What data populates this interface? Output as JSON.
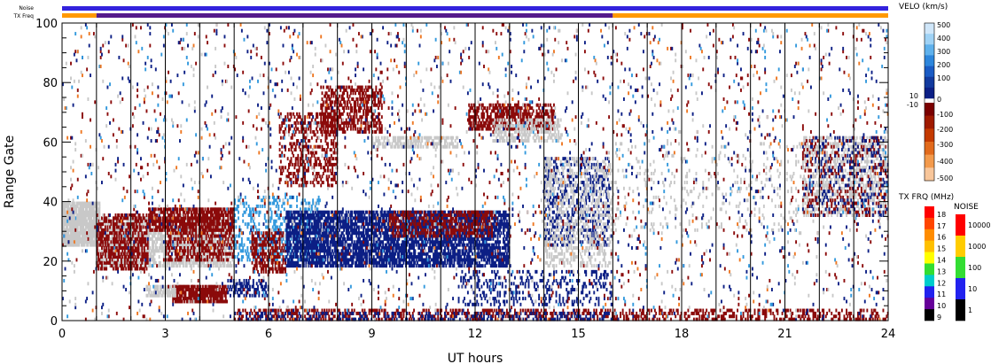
{
  "chart_data": {
    "type": "heatmap",
    "xlabel": "UT hours",
    "ylabel": "Range Gate",
    "xlim": [
      0,
      24
    ],
    "ylim": [
      0,
      100
    ],
    "x_ticks": [
      "0",
      "3",
      "6",
      "9",
      "12",
      "15",
      "18",
      "21",
      "24"
    ],
    "y_ticks": [
      "0",
      "20",
      "40",
      "60",
      "80",
      "100"
    ],
    "grid": "vertical lines every hour",
    "top_bars": {
      "noise_label": "Noise",
      "txfreq_label": "TX Freq",
      "noise_color": "#3322dd",
      "txfreq_segments": [
        {
          "start": 0,
          "end": 1,
          "color": "#ff9900"
        },
        {
          "start": 1,
          "end": 16,
          "color": "#551a8b"
        },
        {
          "start": 16,
          "end": 24,
          "color": "#ff9900"
        }
      ]
    },
    "velocity_scale": {
      "title": "VELO (km/s)",
      "labels": [
        "500",
        "400",
        "300",
        "200",
        "100",
        "10",
        "0",
        "-10",
        "-100",
        "-200",
        "-300",
        "-400",
        "-500"
      ],
      "positive_colors": [
        "#cfe6f9",
        "#9fd2f5",
        "#5fb1ec",
        "#2d86dc",
        "#1a5bc4",
        "#123a9e",
        "#0c1f85"
      ],
      "negative_colors": [
        "#7a0000",
        "#a01a00",
        "#c43a00",
        "#e26a1c",
        "#f39a4c",
        "#f8c69a"
      ]
    },
    "txfreq_scale": {
      "title": "TX FRQ (MHz)",
      "labels": [
        "18",
        "17",
        "16",
        "15",
        "14",
        "13",
        "12",
        "11",
        "10",
        "9"
      ],
      "colors": [
        "#ff0000",
        "#ff4500",
        "#ff8c00",
        "#ffc000",
        "#ffff00",
        "#33dd33",
        "#00cccc",
        "#2222ee",
        "#660099",
        "#000000"
      ]
    },
    "noise_scale": {
      "title": "NOISE",
      "labels": [
        "10000",
        "1000",
        "100",
        "10",
        "1"
      ],
      "colors": [
        "#ff0000",
        "#ffcc00",
        "#33dd33",
        "#2222ee",
        "#000000"
      ]
    },
    "colors": {
      "ground_scatter": "#c8c8c8",
      "away": "#8b0a0a",
      "toward": "#0c1f85",
      "toward_light": "#3399dd",
      "orange": "#ee7722"
    },
    "regions": [
      {
        "type": "ground_scatter",
        "t0": 0.0,
        "t1": 1.1,
        "g0": 25,
        "g1": 40,
        "density": 0.92
      },
      {
        "type": "ground_scatter",
        "t0": 1.0,
        "t1": 5.0,
        "g0": 18,
        "g1": 35,
        "density": 0.65
      },
      {
        "type": "away",
        "t0": 1.0,
        "t1": 2.5,
        "g0": 17,
        "g1": 36,
        "density": 0.55
      },
      {
        "type": "away",
        "t0": 2.5,
        "t1": 5.0,
        "g0": 30,
        "g1": 38,
        "density": 0.75
      },
      {
        "type": "away",
        "t0": 3.0,
        "t1": 5.0,
        "g0": 20,
        "g1": 30,
        "density": 0.45
      },
      {
        "type": "away",
        "t0": 3.2,
        "t1": 4.8,
        "g0": 6,
        "g1": 12,
        "density": 0.85
      },
      {
        "type": "ground_scatter",
        "t0": 2.4,
        "t1": 3.3,
        "g0": 8,
        "g1": 12,
        "density": 0.7
      },
      {
        "type": "toward",
        "t0": 4.8,
        "t1": 6.0,
        "g0": 8,
        "g1": 14,
        "density": 0.45
      },
      {
        "type": "toward_light",
        "t0": 5.0,
        "t1": 7.5,
        "g0": 20,
        "g1": 42,
        "density": 0.25
      },
      {
        "type": "away",
        "t0": 5.5,
        "t1": 6.5,
        "g0": 16,
        "g1": 30,
        "density": 0.5
      },
      {
        "type": "away",
        "t0": 6.3,
        "t1": 8.0,
        "g0": 45,
        "g1": 70,
        "density": 0.35
      },
      {
        "type": "away",
        "t0": 7.5,
        "t1": 9.3,
        "g0": 63,
        "g1": 79,
        "density": 0.5
      },
      {
        "type": "toward",
        "t0": 6.5,
        "t1": 13.0,
        "g0": 18,
        "g1": 37,
        "density": 0.72
      },
      {
        "type": "away",
        "t0": 9.5,
        "t1": 12.5,
        "g0": 28,
        "g1": 37,
        "density": 0.45
      },
      {
        "type": "toward",
        "t0": 11.5,
        "t1": 16.0,
        "g0": 5,
        "g1": 17,
        "density": 0.2
      },
      {
        "type": "ground_scatter",
        "t0": 9.0,
        "t1": 11.5,
        "g0": 58,
        "g1": 62,
        "density": 0.55
      },
      {
        "type": "away",
        "t0": 11.8,
        "t1": 14.3,
        "g0": 64,
        "g1": 73,
        "density": 0.6
      },
      {
        "type": "ground_scatter",
        "t0": 12.5,
        "t1": 14.5,
        "g0": 60,
        "g1": 68,
        "density": 0.45
      },
      {
        "type": "toward",
        "t0": 14.0,
        "t1": 15.9,
        "g0": 25,
        "g1": 55,
        "density": 0.3
      },
      {
        "type": "ground_scatter",
        "t0": 14.0,
        "t1": 16.0,
        "g0": 18,
        "g1": 55,
        "density": 0.28
      },
      {
        "type": "away",
        "t0": 5.0,
        "t1": 24.0,
        "g0": 0,
        "g1": 4,
        "density": 0.35
      },
      {
        "type": "toward",
        "t0": 5.0,
        "t1": 16.0,
        "g0": 0,
        "g1": 3,
        "density": 0.25
      },
      {
        "type": "ground_scatter",
        "t0": 21.5,
        "t1": 24.0,
        "g0": 35,
        "g1": 62,
        "density": 0.4
      },
      {
        "type": "away",
        "t0": 21.5,
        "t1": 24.0,
        "g0": 35,
        "g1": 62,
        "density": 0.12
      },
      {
        "type": "toward",
        "t0": 21.5,
        "t1": 24.0,
        "g0": 35,
        "g1": 62,
        "density": 0.1
      },
      {
        "type": "ground_scatter",
        "t0": 16.0,
        "t1": 21.5,
        "g0": 30,
        "g1": 60,
        "density": 0.05
      },
      {
        "type": "away",
        "t0": 0.0,
        "t1": 24.0,
        "g0": 0,
        "g1": 100,
        "density": 0.012
      },
      {
        "type": "toward",
        "t0": 0.0,
        "t1": 24.0,
        "g0": 0,
        "g1": 100,
        "density": 0.012
      },
      {
        "type": "toward_light",
        "t0": 0.0,
        "t1": 24.0,
        "g0": 0,
        "g1": 100,
        "density": 0.006
      },
      {
        "type": "orange",
        "t0": 0.0,
        "t1": 24.0,
        "g0": 0,
        "g1": 100,
        "density": 0.004
      },
      {
        "type": "ground_scatter",
        "t0": 0.0,
        "t1": 24.0,
        "g0": 0,
        "g1": 100,
        "density": 0.01
      }
    ]
  }
}
